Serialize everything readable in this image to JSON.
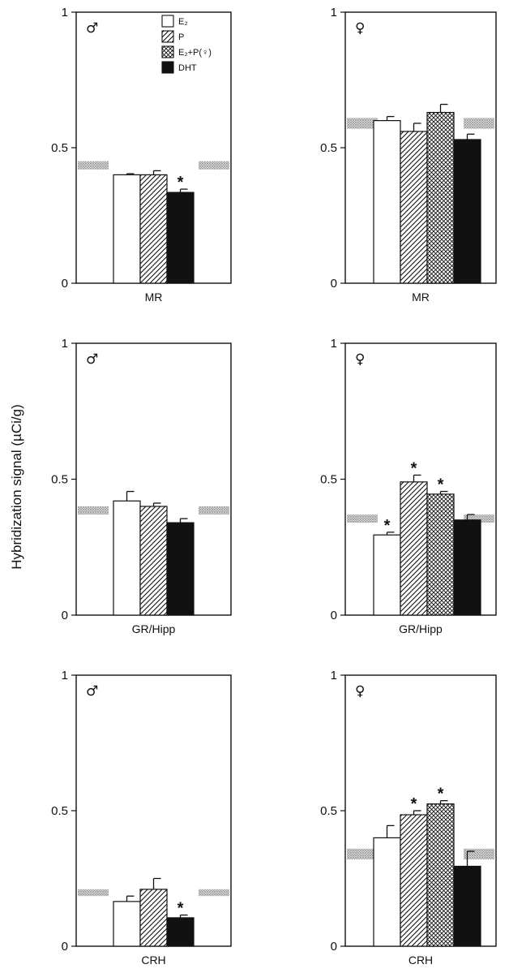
{
  "figure": {
    "ylabel": "Hybridization signal (µCi/g)"
  },
  "legend": [
    {
      "key": "E2",
      "label": "E₂"
    },
    {
      "key": "P",
      "label": "P"
    },
    {
      "key": "E2P",
      "label": "E₂+P(♀)"
    },
    {
      "key": "DHT",
      "label": "DHT"
    }
  ],
  "chart_data": [
    {
      "type": "bar",
      "panel": "male-MR",
      "sex_symbol": "♂",
      "xlabel": "MR",
      "ylim": [
        0,
        1
      ],
      "yticks": [
        "0",
        "0.5",
        "1"
      ],
      "reference_band": [
        0.42,
        0.45
      ],
      "bars": [
        {
          "key": "E2",
          "value": 0.4,
          "error": 0.004,
          "star": false
        },
        {
          "key": "P",
          "value": 0.4,
          "error": 0.015,
          "star": false
        },
        {
          "key": "DHT",
          "value": 0.335,
          "error": 0.012,
          "star": true
        }
      ]
    },
    {
      "type": "bar",
      "panel": "female-MR",
      "sex_symbol": "♀",
      "xlabel": "MR",
      "ylim": [
        0,
        1
      ],
      "yticks": [
        "0",
        "0.5",
        "1"
      ],
      "reference_band": [
        0.57,
        0.61
      ],
      "bars": [
        {
          "key": "E2",
          "value": 0.6,
          "error": 0.015,
          "star": false
        },
        {
          "key": "P",
          "value": 0.56,
          "error": 0.03,
          "star": false
        },
        {
          "key": "E2P",
          "value": 0.63,
          "error": 0.03,
          "star": false
        },
        {
          "key": "DHT",
          "value": 0.53,
          "error": 0.02,
          "star": false
        }
      ]
    },
    {
      "type": "bar",
      "panel": "male-GR",
      "sex_symbol": "♂",
      "xlabel": "GR/Hipp",
      "ylim": [
        0,
        1
      ],
      "yticks": [
        "0",
        "0.5",
        "1"
      ],
      "reference_band": [
        0.37,
        0.4
      ],
      "bars": [
        {
          "key": "E2",
          "value": 0.42,
          "error": 0.035,
          "star": false
        },
        {
          "key": "P",
          "value": 0.4,
          "error": 0.012,
          "star": false
        },
        {
          "key": "DHT",
          "value": 0.34,
          "error": 0.015,
          "star": false
        }
      ]
    },
    {
      "type": "bar",
      "panel": "female-GR",
      "sex_symbol": "♀",
      "xlabel": "GR/Hipp",
      "ylim": [
        0,
        1
      ],
      "yticks": [
        "0",
        "0.5",
        "1"
      ],
      "reference_band": [
        0.34,
        0.37
      ],
      "bars": [
        {
          "key": "E2",
          "value": 0.295,
          "error": 0.01,
          "star": true
        },
        {
          "key": "P",
          "value": 0.49,
          "error": 0.025,
          "star": true
        },
        {
          "key": "E2P",
          "value": 0.445,
          "error": 0.01,
          "star": true
        },
        {
          "key": "DHT",
          "value": 0.35,
          "error": 0.02,
          "star": false
        }
      ]
    },
    {
      "type": "bar",
      "panel": "male-CRH",
      "sex_symbol": "♂",
      "xlabel": "CRH",
      "ylim": [
        0,
        1
      ],
      "yticks": [
        "0",
        "0.5",
        "1"
      ],
      "reference_band": [
        0.185,
        0.21
      ],
      "bars": [
        {
          "key": "E2",
          "value": 0.165,
          "error": 0.02,
          "star": false
        },
        {
          "key": "P",
          "value": 0.21,
          "error": 0.04,
          "star": false
        },
        {
          "key": "DHT",
          "value": 0.105,
          "error": 0.01,
          "star": true
        }
      ]
    },
    {
      "type": "bar",
      "panel": "female-CRH",
      "sex_symbol": "♀",
      "xlabel": "CRH",
      "ylim": [
        0,
        1
      ],
      "yticks": [
        "0",
        "0.5",
        "1"
      ],
      "reference_band": [
        0.32,
        0.36
      ],
      "bars": [
        {
          "key": "E2",
          "value": 0.4,
          "error": 0.045,
          "star": false
        },
        {
          "key": "P",
          "value": 0.485,
          "error": 0.015,
          "star": true
        },
        {
          "key": "E2P",
          "value": 0.525,
          "error": 0.012,
          "star": true
        },
        {
          "key": "DHT",
          "value": 0.295,
          "error": 0.055,
          "star": false
        }
      ]
    }
  ]
}
